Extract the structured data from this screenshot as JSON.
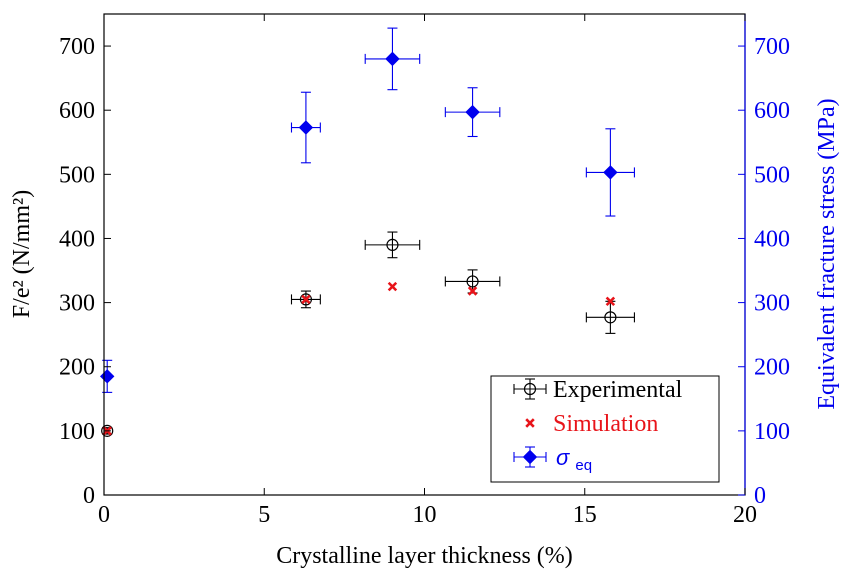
{
  "chart_data": {
    "type": "scatter",
    "xlabel": "Crystalline layer thickness (%)",
    "ylabel_left": "F/e² (N/mm²)",
    "ylabel_right": "Equivalent fracture stress (MPa)",
    "xlim": [
      0,
      20
    ],
    "ylim_left": [
      0,
      750
    ],
    "ylim_right": [
      0,
      750
    ],
    "x_ticks": [
      0,
      5,
      10,
      15,
      20
    ],
    "y_ticks_left": [
      0,
      100,
      200,
      300,
      400,
      500,
      600,
      700
    ],
    "y_ticks_right": [
      0,
      100,
      200,
      300,
      400,
      500,
      600,
      700
    ],
    "grid": false,
    "legend_position": "bottom-right",
    "series": [
      {
        "name": "Experimental",
        "axis": "left",
        "color": "#000000",
        "marker": "open-circle",
        "points": [
          {
            "x": 0.1,
            "y": 100,
            "xerr": 0,
            "yerr": 5
          },
          {
            "x": 6.3,
            "y": 305,
            "xerr": 0.45,
            "yerr": 13
          },
          {
            "x": 9.0,
            "y": 390,
            "xerr": 0.85,
            "yerr": 20
          },
          {
            "x": 11.5,
            "y": 333,
            "xerr": 0.85,
            "yerr": 18
          },
          {
            "x": 15.8,
            "y": 277,
            "xerr": 0.75,
            "yerr": 25
          }
        ]
      },
      {
        "name": "Simulation",
        "axis": "left",
        "color": "#e8141a",
        "marker": "x",
        "points": [
          {
            "x": 0.1,
            "y": 100
          },
          {
            "x": 6.3,
            "y": 305
          },
          {
            "x": 9.0,
            "y": 325
          },
          {
            "x": 11.5,
            "y": 318
          },
          {
            "x": 15.8,
            "y": 302
          }
        ]
      },
      {
        "name": "σ_eq",
        "name_base": "σ",
        "name_sub": "eq",
        "axis": "right",
        "color": "#0000ee",
        "marker": "filled-diamond",
        "points": [
          {
            "x": 0.1,
            "y": 185,
            "xerr": 0,
            "yerr": 25
          },
          {
            "x": 6.3,
            "y": 573,
            "xerr": 0.45,
            "yerr": 55
          },
          {
            "x": 9.0,
            "y": 680,
            "xerr": 0.85,
            "yerr": 48
          },
          {
            "x": 11.5,
            "y": 597,
            "xerr": 0.85,
            "yerr": 38
          },
          {
            "x": 15.8,
            "y": 503,
            "xerr": 0.75,
            "yerr": 68
          }
        ]
      }
    ]
  }
}
